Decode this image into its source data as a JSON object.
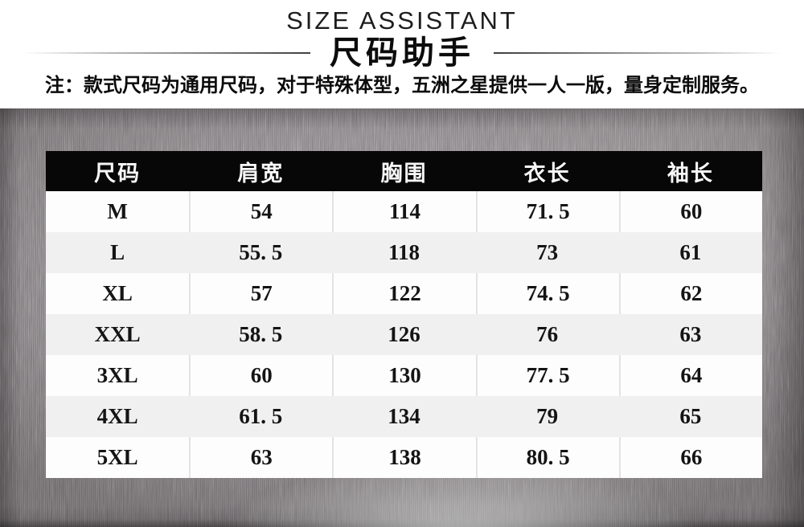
{
  "header": {
    "title_en": "SIZE ASSISTANT",
    "title_cn": "尺码助手",
    "note": "注：款式尺码为通用尺码，对于特殊体型，五洲之星提供一人一版，量身定制服务。"
  },
  "table": {
    "columns": [
      "尺码",
      "肩宽",
      "胸围",
      "衣长",
      "袖长"
    ],
    "rows": [
      [
        "M",
        "54",
        "114",
        "71. 5",
        "60"
      ],
      [
        "L",
        "55. 5",
        "118",
        "73",
        "61"
      ],
      [
        "XL",
        "57",
        "122",
        "74. 5",
        "62"
      ],
      [
        "XXL",
        "58. 5",
        "126",
        "76",
        "63"
      ],
      [
        "3XL",
        "60",
        "130",
        "77. 5",
        "64"
      ],
      [
        "4XL",
        "61. 5",
        "134",
        "79",
        "65"
      ],
      [
        "5XL",
        "63",
        "138",
        "80. 5",
        "66"
      ]
    ]
  },
  "colors": {
    "table_header_bg": "#070707",
    "table_header_text": "#f7f7f7",
    "row_white": "#fdfdfd",
    "row_gray": "#f0f0f0",
    "divider": "#e3e3e3",
    "metal_base": "#8e898c",
    "text": "#0c0c0c"
  }
}
